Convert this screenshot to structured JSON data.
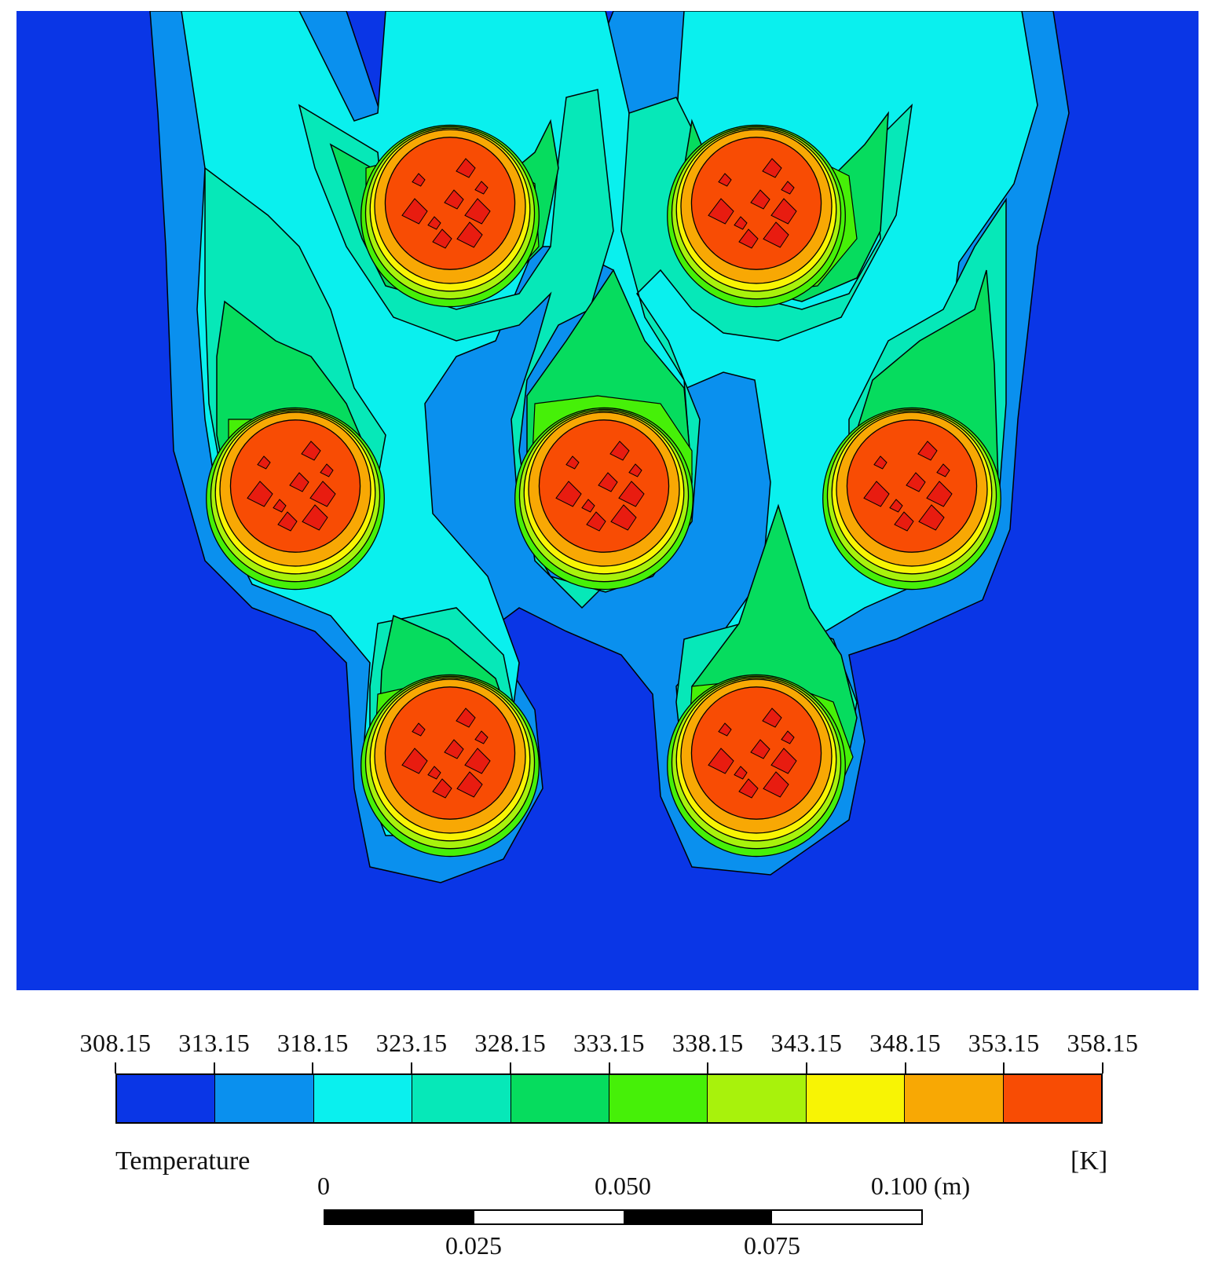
{
  "chart_data": {
    "type": "heatmap",
    "title": "",
    "xlabel": "",
    "ylabel": "",
    "colorbar": {
      "variable": "Temperature",
      "unit": "[K]",
      "ticks": [
        "308.15",
        "313.15",
        "318.15",
        "323.15",
        "328.15",
        "333.15",
        "338.15",
        "343.15",
        "348.15",
        "353.15",
        "358.15"
      ],
      "levels": [
        308.15,
        313.15,
        318.15,
        323.15,
        328.15,
        333.15,
        338.15,
        343.15,
        348.15,
        353.15,
        358.15
      ],
      "colors": [
        "#0a36e6",
        "#0a90ee",
        "#0af0ee",
        "#06e8b8",
        "#06dc5e",
        "#46f008",
        "#a8f20c",
        "#f8f404",
        "#f8a804",
        "#f84c04"
      ]
    },
    "scale_bar": {
      "unit_label": "0.100 (m)",
      "top_labels": [
        "0",
        "0.050"
      ],
      "bottom_labels": [
        "0.025",
        "0.075"
      ],
      "values_m": [
        0,
        0.025,
        0.05,
        0.075,
        0.1
      ]
    },
    "heat_sources": [
      {
        "name": "tube-top-left",
        "temperature_K": 358.15
      },
      {
        "name": "tube-top-right",
        "temperature_K": 358.15
      },
      {
        "name": "tube-mid-left",
        "temperature_K": 358.15
      },
      {
        "name": "tube-mid-center",
        "temperature_K": 358.15
      },
      {
        "name": "tube-mid-right",
        "temperature_K": 358.15
      },
      {
        "name": "tube-bottom-left",
        "temperature_K": 358.15
      },
      {
        "name": "tube-bottom-right",
        "temperature_K": 358.15
      }
    ],
    "ambient_temperature_K": 308.15
  }
}
